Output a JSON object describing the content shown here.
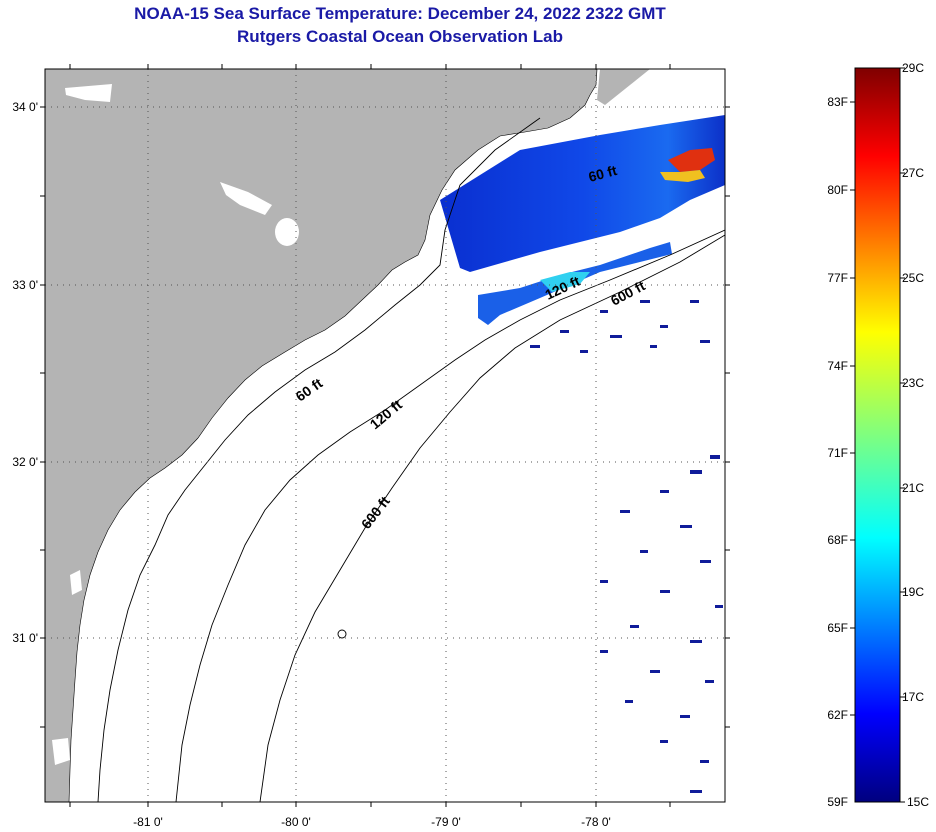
{
  "title": "NOAA-15 Sea Surface Temperature:  December 24, 2022 2322 GMT",
  "subtitle": "Rutgers Coastal Ocean Observation Lab",
  "map": {
    "lat_ticks": [
      "34 0'",
      "33 0'",
      "32 0'",
      "31 0'"
    ],
    "lon_ticks": [
      "-81 0'",
      "-80 0'",
      "-79 0'",
      "-78 0'"
    ],
    "contour_labels": [
      "60 ft",
      "120 ft",
      "600 ft",
      "60 ft",
      "120 ft",
      "600 ft"
    ],
    "colors": {
      "land": "#b4b4b4",
      "ocean": "#ffffff",
      "grid": "#555555"
    }
  },
  "colorbar": {
    "fahrenheit": [
      "83F",
      "80F",
      "77F",
      "74F",
      "71F",
      "68F",
      "65F",
      "62F",
      "59F"
    ],
    "celsius": [
      "29C",
      "27C",
      "25C",
      "23C",
      "21C",
      "19C",
      "17C",
      "15C"
    ],
    "range_c": [
      15,
      29
    ]
  }
}
